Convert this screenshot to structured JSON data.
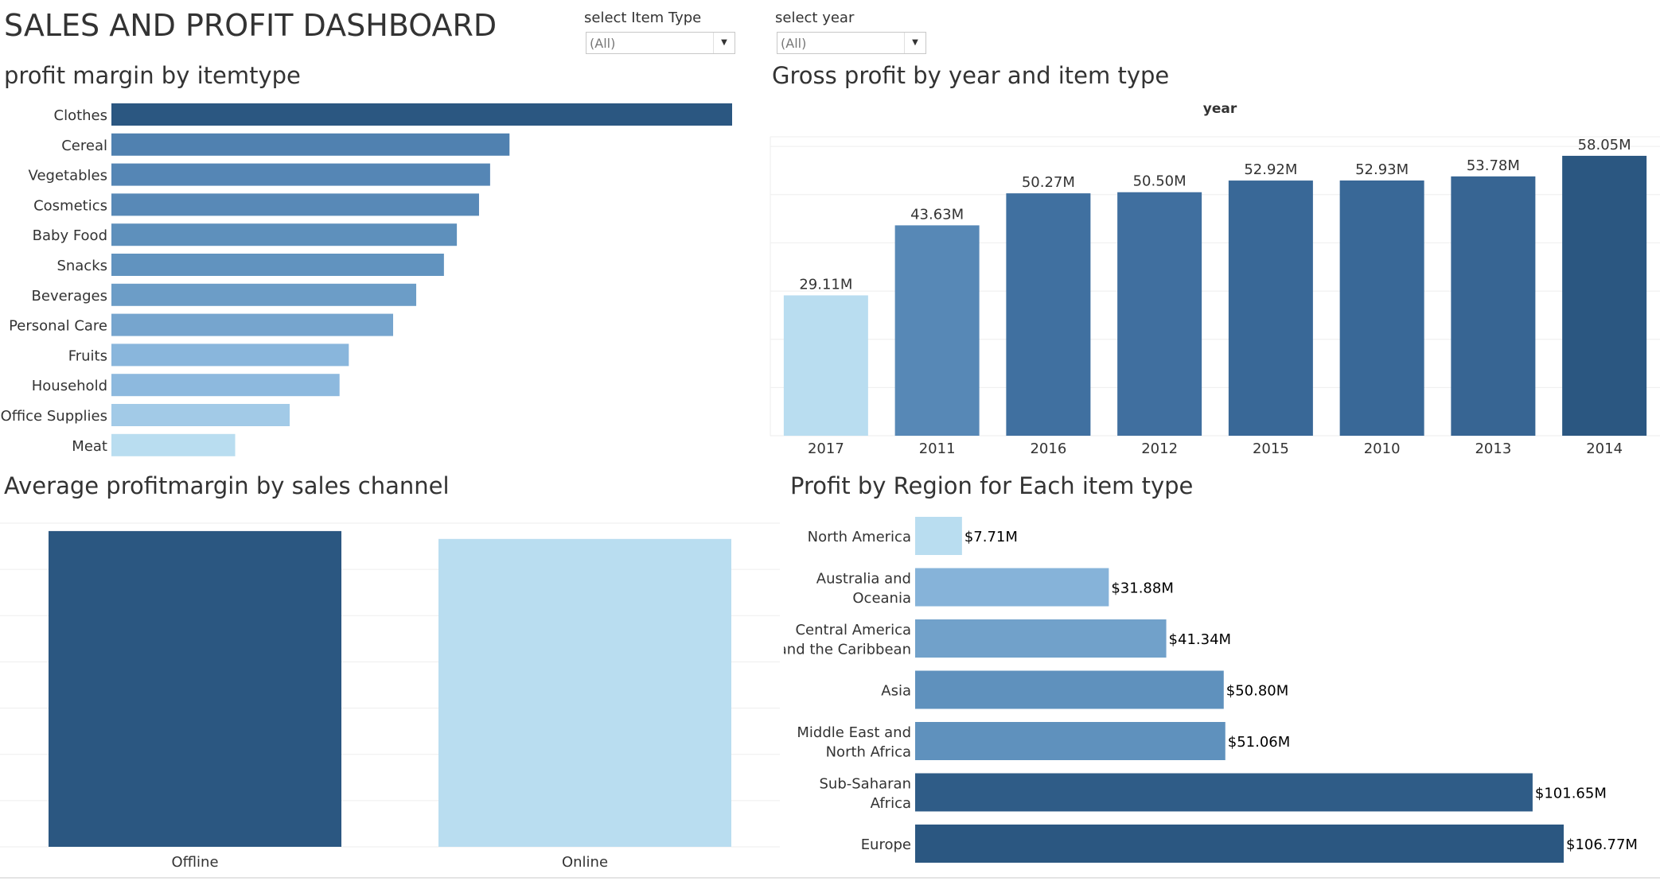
{
  "dashboard": {
    "title": "SALES AND PROFIT DASHBOARD"
  },
  "filters": [
    {
      "label": "select Item Type",
      "value": "(All)"
    },
    {
      "label": "select year",
      "value": "(All)"
    }
  ],
  "panels": {
    "itemtype": {
      "title": "profit margin by itemtype"
    },
    "year": {
      "title": "Gross profit by year and item type"
    },
    "channel": {
      "title": "Average profitmargin by sales channel"
    },
    "region": {
      "title": "Profit by Region for Each item type"
    }
  },
  "colors": {
    "darkest": "#2b5781",
    "dark": "#3b6a9a",
    "mid": "#4a7aab",
    "midlight": "#6496c1",
    "light": "#8fbbe0",
    "lightest": "#b9ddf0",
    "text": "#333333",
    "grid": "#eeeeee"
  },
  "chart_data": [
    {
      "id": "itemtype",
      "type": "bar",
      "orientation": "horizontal",
      "title": "profit margin by itemtype",
      "categories": [
        "Clothes",
        "Cereal",
        "Vegetables",
        "Cosmetics",
        "Baby Food",
        "Snacks",
        "Beverages",
        "Personal Care",
        "Fruits",
        "Household",
        "Office Supplies",
        "Meat"
      ],
      "values": [
        0.672,
        0.431,
        0.41,
        0.398,
        0.374,
        0.36,
        0.33,
        0.305,
        0.257,
        0.247,
        0.193,
        0.134
      ],
      "grid": false
    },
    {
      "id": "year",
      "type": "bar",
      "title": "Gross profit by year and item type",
      "xlabel": "year",
      "categories": [
        "2017",
        "2011",
        "2016",
        "2012",
        "2015",
        "2010",
        "2013",
        "2014"
      ],
      "values": [
        29.11,
        43.63,
        50.27,
        50.5,
        52.92,
        52.93,
        53.78,
        58.05
      ],
      "value_labels": [
        "29.11M",
        "43.63M",
        "50.27M",
        "50.50M",
        "52.92M",
        "52.93M",
        "53.78M",
        "58.05M"
      ],
      "ylim": [
        0,
        62
      ],
      "grid": true
    },
    {
      "id": "channel",
      "type": "bar",
      "title": "Average profitmargin by sales channel",
      "categories": [
        "Offline",
        "Online"
      ],
      "values": [
        0.361,
        0.352
      ],
      "ylim": [
        0,
        0.37
      ],
      "grid": true
    },
    {
      "id": "region",
      "type": "bar",
      "orientation": "horizontal",
      "title": "Profit by Region for Each item type",
      "categories": [
        [
          "North America"
        ],
        [
          "Australia and",
          "Oceania"
        ],
        [
          "Central America",
          "and the Caribbean"
        ],
        [
          "Asia"
        ],
        [
          "Middle East and",
          "North Africa"
        ],
        [
          "Sub-Saharan",
          "Africa"
        ],
        [
          "Europe"
        ]
      ],
      "values": [
        7.71,
        31.88,
        41.34,
        50.8,
        51.06,
        101.65,
        106.77
      ],
      "value_labels": [
        "$7.71M",
        "$31.88M",
        "$41.34M",
        "$50.80M",
        "$51.06M",
        "$101.65M",
        "$106.77M"
      ],
      "grid": false
    }
  ]
}
